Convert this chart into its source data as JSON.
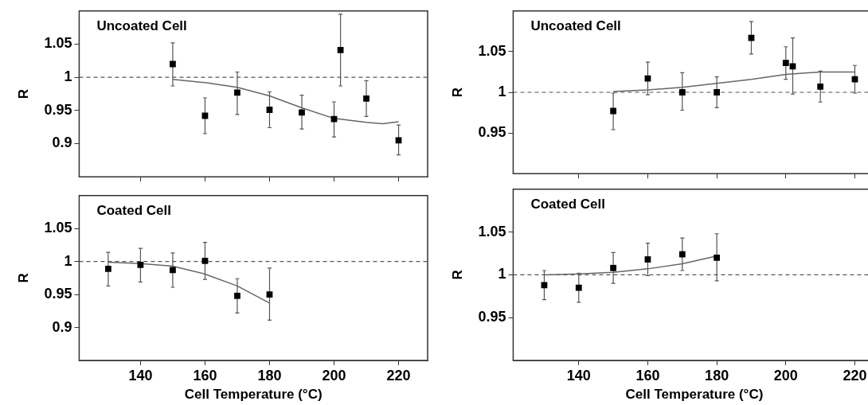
{
  "chart_data": [
    {
      "type": "scatter",
      "title": "Uncoated Cell",
      "ylabel": "R",
      "marker": "square",
      "grid": false,
      "legend": false,
      "tick_labels": "y",
      "xlim": [
        121,
        229
      ],
      "xticks": [
        140,
        160,
        180,
        200,
        220
      ],
      "ylim": [
        0.85,
        1.1
      ],
      "yticks": [
        0.9,
        0.95,
        1,
        1.05
      ],
      "ref_lines": [
        {
          "axis": "y",
          "value": 1,
          "line_style": "dashed",
          "color": "#555555"
        }
      ],
      "series": [
        {
          "color": "#000000",
          "x": [
            150,
            160,
            170,
            180,
            190,
            200,
            202,
            210,
            220
          ],
          "values": [
            1.02,
            0.942,
            0.977,
            0.951,
            0.947,
            0.937,
            1.041,
            0.968,
            0.905
          ],
          "errors": [
            [
              0.987,
              1.052
            ],
            [
              0.915,
              0.969
            ],
            [
              0.944,
              1.008
            ],
            [
              0.924,
              0.978
            ],
            [
              0.922,
              0.973
            ],
            [
              0.91,
              0.963
            ],
            [
              0.987,
              1.095
            ],
            [
              0.941,
              0.995
            ],
            [
              0.883,
              0.928
            ]
          ]
        },
        {
          "type": "line",
          "color": "#666666",
          "marker": "none",
          "line_style": "solid",
          "x": [
            150,
            160,
            170,
            180,
            190,
            200,
            210,
            215,
            220
          ],
          "values": [
            0.997,
            0.992,
            0.985,
            0.972,
            0.954,
            0.938,
            0.932,
            0.93,
            0.933
          ]
        }
      ]
    },
    {
      "type": "scatter",
      "title": "Coated Cell",
      "xlabel": "Cell Temperature (°C)",
      "ylabel": "R",
      "marker": "square",
      "grid": false,
      "legend": false,
      "xlim": [
        121,
        229
      ],
      "xticks": [
        140,
        160,
        180,
        200,
        220
      ],
      "ylim": [
        0.85,
        1.1
      ],
      "yticks": [
        0.9,
        0.95,
        1,
        1.05
      ],
      "ref_lines": [
        {
          "axis": "y",
          "value": 1,
          "line_style": "dashed",
          "color": "#555555"
        }
      ],
      "series": [
        {
          "color": "#000000",
          "x": [
            130,
            140,
            150,
            160,
            170,
            180
          ],
          "values": [
            0.989,
            0.995,
            0.987,
            1.001,
            0.948,
            0.95
          ],
          "errors": [
            [
              0.963,
              1.014
            ],
            [
              0.969,
              1.02
            ],
            [
              0.961,
              1.013
            ],
            [
              0.973,
              1.029
            ],
            [
              0.922,
              0.974
            ],
            [
              0.911,
              0.99
            ]
          ]
        },
        {
          "type": "line",
          "color": "#666666",
          "marker": "none",
          "line_style": "solid",
          "x": [
            130,
            140,
            150,
            160,
            170,
            180
          ],
          "values": [
            0.999,
            0.997,
            0.993,
            0.981,
            0.963,
            0.937
          ]
        }
      ]
    },
    {
      "type": "scatter",
      "title": "Uncoated Cell",
      "ylabel": "R",
      "marker": "square",
      "grid": false,
      "legend": false,
      "tick_labels": "y",
      "xlim": [
        121,
        226
      ],
      "xticks": [
        140,
        160,
        180,
        200,
        220
      ],
      "ylim": [
        0.9,
        1.1
      ],
      "yticks": [
        0.95,
        1,
        1.05
      ],
      "ref_lines": [
        {
          "axis": "y",
          "value": 1,
          "line_style": "dashed",
          "color": "#555555"
        }
      ],
      "series": [
        {
          "color": "#000000",
          "x": [
            150,
            160,
            170,
            180,
            190,
            200,
            202,
            210,
            220
          ],
          "values": [
            0.977,
            1.017,
            1.0,
            1.0,
            1.067,
            1.036,
            1.032,
            1.007,
            1.016
          ],
          "errors": [
            [
              0.954,
              0.999
            ],
            [
              0.997,
              1.037
            ],
            [
              0.978,
              1.024
            ],
            [
              0.981,
              1.019
            ],
            [
              1.047,
              1.087
            ],
            [
              1.016,
              1.056
            ],
            [
              0.998,
              1.067
            ],
            [
              0.988,
              1.026
            ],
            [
              0.999,
              1.033
            ]
          ]
        },
        {
          "type": "line",
          "color": "#666666",
          "marker": "none",
          "line_style": "solid",
          "x": [
            150,
            160,
            170,
            180,
            190,
            200,
            210,
            215,
            220
          ],
          "values": [
            1.001,
            1.003,
            1.006,
            1.011,
            1.016,
            1.022,
            1.025,
            1.025,
            1.025
          ]
        }
      ]
    },
    {
      "type": "scatter",
      "title": "Coated Cell",
      "xlabel": "Cell Temperature (°C)",
      "ylabel": "R",
      "marker": "square",
      "grid": false,
      "legend": false,
      "xlim": [
        121,
        226
      ],
      "xticks": [
        140,
        160,
        180,
        200,
        220
      ],
      "ylim": [
        0.9,
        1.1
      ],
      "yticks": [
        0.95,
        1,
        1.05
      ],
      "ref_lines": [
        {
          "axis": "y",
          "value": 1,
          "line_style": "dashed",
          "color": "#555555"
        }
      ],
      "series": [
        {
          "color": "#000000",
          "x": [
            130,
            140,
            150,
            160,
            170,
            180
          ],
          "values": [
            0.988,
            0.985,
            1.008,
            1.018,
            1.024,
            1.02
          ],
          "errors": [
            [
              0.971,
              1.005
            ],
            [
              0.968,
              1.002
            ],
            [
              0.99,
              1.026
            ],
            [
              0.999,
              1.037
            ],
            [
              1.005,
              1.043
            ],
            [
              0.993,
              1.048
            ]
          ]
        },
        {
          "type": "line",
          "color": "#666666",
          "marker": "none",
          "line_style": "solid",
          "x": [
            130,
            140,
            150,
            160,
            170,
            180
          ],
          "values": [
            1.0,
            1.001,
            1.003,
            1.007,
            1.013,
            1.022
          ]
        }
      ]
    }
  ]
}
